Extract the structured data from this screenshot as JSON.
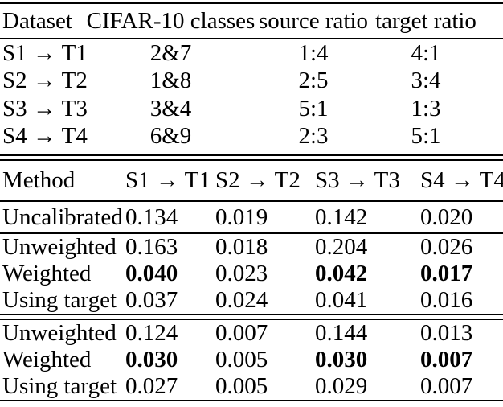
{
  "colors": {
    "text": "#000000",
    "background": "#ffffff",
    "rule": "#000000"
  },
  "table1": {
    "headers": [
      "Dataset",
      "CIFAR-10 classes",
      "source ratio",
      "target ratio"
    ],
    "rows": [
      {
        "dataset": "S1 → T1",
        "classes": "2&7",
        "source": "1:4",
        "target": "4:1"
      },
      {
        "dataset": "S2 → T2",
        "classes": "1&8",
        "source": "2:5",
        "target": "3:4"
      },
      {
        "dataset": "S3 → T3",
        "classes": "3&4",
        "source": "5:1",
        "target": "1:3"
      },
      {
        "dataset": "S4 → T4",
        "classes": "6&9",
        "source": "2:3",
        "target": "5:1"
      }
    ]
  },
  "table2": {
    "headers": [
      "Method",
      "S1 → T1",
      "S2 → T2",
      "S3 → T3",
      "S4 → T4"
    ],
    "sections": [
      {
        "rows": [
          {
            "method": "Uncalibrated",
            "values": [
              {
                "v": "0.134",
                "b": false
              },
              {
                "v": "0.019",
                "b": false
              },
              {
                "v": "0.142",
                "b": false
              },
              {
                "v": "0.020",
                "b": false
              }
            ]
          }
        ]
      },
      {
        "rows": [
          {
            "method": "Unweighted",
            "values": [
              {
                "v": "0.163",
                "b": false
              },
              {
                "v": "0.018",
                "b": false
              },
              {
                "v": "0.204",
                "b": false
              },
              {
                "v": "0.026",
                "b": false
              }
            ]
          },
          {
            "method": "Weighted",
            "values": [
              {
                "v": "0.040",
                "b": true
              },
              {
                "v": "0.023",
                "b": false
              },
              {
                "v": "0.042",
                "b": true
              },
              {
                "v": "0.017",
                "b": true
              }
            ]
          },
          {
            "method": "Using target",
            "values": [
              {
                "v": "0.037",
                "b": false
              },
              {
                "v": "0.024",
                "b": false
              },
              {
                "v": "0.041",
                "b": false
              },
              {
                "v": "0.016",
                "b": false
              }
            ]
          }
        ]
      },
      {
        "rows": [
          {
            "method": "Unweighted",
            "values": [
              {
                "v": "0.124",
                "b": false
              },
              {
                "v": "0.007",
                "b": false
              },
              {
                "v": "0.144",
                "b": false
              },
              {
                "v": "0.013",
                "b": false
              }
            ]
          },
          {
            "method": "Weighted",
            "values": [
              {
                "v": "0.030",
                "b": true
              },
              {
                "v": "0.005",
                "b": false
              },
              {
                "v": "0.030",
                "b": true
              },
              {
                "v": "0.007",
                "b": true
              }
            ]
          },
          {
            "method": "Using target",
            "values": [
              {
                "v": "0.027",
                "b": false
              },
              {
                "v": "0.005",
                "b": false
              },
              {
                "v": "0.029",
                "b": false
              },
              {
                "v": "0.007",
                "b": false
              }
            ]
          }
        ]
      }
    ]
  }
}
